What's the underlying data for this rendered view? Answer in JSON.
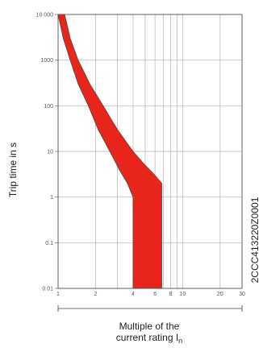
{
  "chart_data": {
    "type": "area",
    "title": "",
    "ylabel": "Trip time in s",
    "xlabel_line1": "Multiple of the",
    "xlabel_line2": "current rating I",
    "xlabel_subscript": "n",
    "side_code": "2CCC413220Z0001",
    "x_scale": "log",
    "y_scale": "log",
    "xlim": [
      1,
      30
    ],
    "ylim": [
      0.01,
      10000
    ],
    "grid": true,
    "x_ticks": [
      {
        "value": 1,
        "label": "1"
      },
      {
        "value": 2,
        "label": "2"
      },
      {
        "value": 3,
        "label": ""
      },
      {
        "value": 4,
        "label": "4"
      },
      {
        "value": 5,
        "label": ""
      },
      {
        "value": 6,
        "label": "6"
      },
      {
        "value": 7,
        "label": ""
      },
      {
        "value": 8,
        "label": "8"
      },
      {
        "value": 9,
        "label": ""
      },
      {
        "value": 10,
        "label": "10"
      },
      {
        "value": 20,
        "label": "20"
      },
      {
        "value": 30,
        "label": "30"
      }
    ],
    "y_ticks": [
      {
        "value": 0.01,
        "label": "0.01"
      },
      {
        "value": 0.1,
        "label": "0.1"
      },
      {
        "value": 1,
        "label": "1"
      },
      {
        "value": 10,
        "label": "10"
      },
      {
        "value": 100,
        "label": "100"
      },
      {
        "value": 1000,
        "label": "1000"
      },
      {
        "value": 10000,
        "label": "10 000"
      }
    ],
    "band": {
      "color": "#e8251b",
      "outline_color": "#5a4a3a",
      "upper_curve": [
        {
          "x": 1.13,
          "y": 10000
        },
        {
          "x": 1.25,
          "y": 3000
        },
        {
          "x": 1.45,
          "y": 1000
        },
        {
          "x": 1.8,
          "y": 300
        },
        {
          "x": 2.3,
          "y": 100
        },
        {
          "x": 3.0,
          "y": 30
        },
        {
          "x": 4.0,
          "y": 10
        },
        {
          "x": 5.0,
          "y": 5
        },
        {
          "x": 6.0,
          "y": 3
        },
        {
          "x": 6.8,
          "y": 2
        }
      ],
      "lower_curve": [
        {
          "x": 1.0,
          "y": 10000
        },
        {
          "x": 1.1,
          "y": 3000
        },
        {
          "x": 1.25,
          "y": 1000
        },
        {
          "x": 1.45,
          "y": 300
        },
        {
          "x": 1.75,
          "y": 100
        },
        {
          "x": 2.1,
          "y": 30
        },
        {
          "x": 2.6,
          "y": 10
        },
        {
          "x": 3.1,
          "y": 4
        },
        {
          "x": 3.6,
          "y": 2
        },
        {
          "x": 4.0,
          "y": 1
        }
      ],
      "instant_low_x": 4.0,
      "instant_high_x": 6.8,
      "instant_bottom_y": 0.01
    }
  }
}
